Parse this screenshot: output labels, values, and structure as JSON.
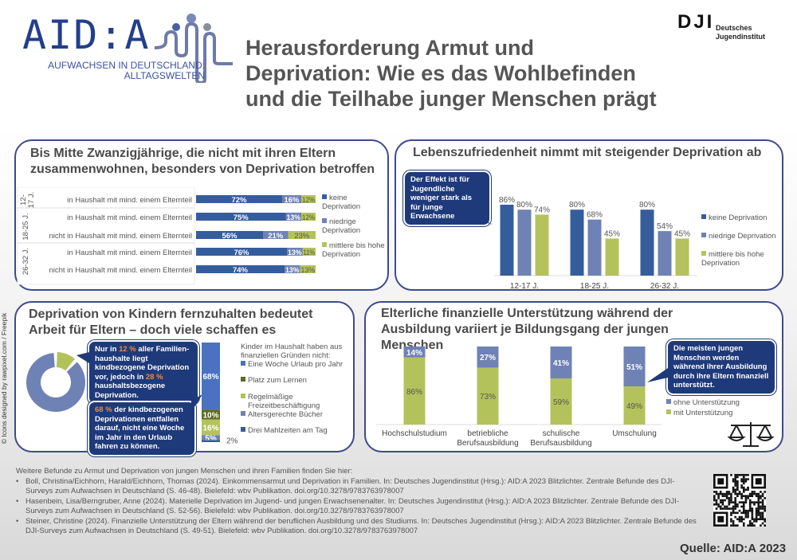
{
  "header": {
    "logo_text": "AID:A",
    "logo_subtitle_1": "AUFWACHSEN IN DEUTSCHLAND:",
    "logo_subtitle_2": "ALLTAGSWELTEN",
    "title_lines": [
      "Herausforderung Armut und",
      "Deprivation: Wie es das Wohlbefinden",
      "und die Teilhabe junger Menschen prägt"
    ],
    "dji_mark": "DJI",
    "dji_name_1": "Deutsches",
    "dji_name_2": "Jugendinstitut"
  },
  "colors": {
    "dark_blue": "#355d9c",
    "mid_blue": "#6f82b6",
    "green": "#b4c25b",
    "olive": "#5f6b25",
    "callout": "#1f3a7a",
    "border": "#3d4a8c"
  },
  "side_credit": "© Icons designed by rawpixel.com / Freepik",
  "panel1": {
    "title": "Bis Mitte Zwanzigjährige, die nicht mit ihren Eltern zusammenwohnen, besonders von Deprivation betroffen",
    "legend": [
      "keine Deprivation",
      "niedrige Deprivation",
      "mittlere bis hohe Deprivation"
    ]
  },
  "panel2": {
    "title": "Lebenszufriedenheit nimmt mit steigender Deprivation ab",
    "callout": "Der Effekt ist für Jugendliche weniger stark als für junge Erwachsene",
    "legend": [
      "keine Deprivation",
      "niedrige Deprivation",
      "mittlere bis hohe Deprivation"
    ]
  },
  "panel3": {
    "title_1": "Deprivation von Kindern fernzuhalten bedeutet",
    "title_2": "Arbeit für Eltern – doch viele schaffen es",
    "callout1": {
      "a": "Nur in ",
      "h1": "12 %",
      "b": " aller Familien­haushalte liegt kindbezoge­ne Deprivation vor, jedoch in ",
      "h2": "28 %",
      "c": " haushaltsbezogene Deprivation."
    },
    "callout2": {
      "h": "68 %",
      "a": " der kindbezogenen Deprivationen entfallen darauf, nicht eine Woche im Jahr in den Urlaub fahren zu können."
    },
    "legend_title": "Kinder im Haushalt haben aus finanziellen Gründen nicht:",
    "legend": [
      "Eine Woche Urlaub pro Jahr",
      "Platz zum Lernen",
      "Regelmäßige Freizeitbeschäftigung",
      "Altersgerechte Bücher",
      "Drei Mahlzeiten am Tag"
    ]
  },
  "panel4": {
    "title": "Elterliche finanzielle Unterstützung während der Ausbildung variiert je Bildungsgang der jungen Menschen",
    "callout": "Die meisten jungen Menschen werden während ihrer Ausbildung durch ihre Eltern finanziell unterstützt.",
    "legend": [
      "ohne Unterstützung",
      "mit Unterstützung"
    ]
  },
  "chart_data": [
    {
      "type": "bar",
      "orientation": "horizontal",
      "stacked": true,
      "groups": [
        "12-17 J.",
        "18-25 J.",
        "26-32 J."
      ],
      "rows": [
        {
          "group": "12-17 J.",
          "label": "in Haushalt mit mind. einem Elternteil",
          "values": [
            72,
            16,
            12
          ]
        },
        {
          "group": "18-25 J.",
          "label": "in Haushalt mit mind. einem Elternteil",
          "values": [
            75,
            13,
            12
          ]
        },
        {
          "group": "18-25 J.",
          "label": "nicht in Haushalt mit mind. einem Elternteil",
          "values": [
            56,
            21,
            23
          ]
        },
        {
          "group": "26-32 J.",
          "label": "in Haushalt mit mind. einem Elternteil",
          "values": [
            76,
            13,
            11
          ]
        },
        {
          "group": "26-32 J.",
          "label": "nicht in Haushalt mit mind. einem Elternteil",
          "values": [
            74,
            13,
            13
          ]
        }
      ],
      "series": [
        {
          "name": "keine Deprivation"
        },
        {
          "name": "niedrige Deprivation"
        },
        {
          "name": "mittlere bis hohe Deprivation"
        }
      ],
      "legend": "right"
    },
    {
      "type": "bar",
      "categories": [
        "12-17 J.",
        "18-25 J.",
        "26-32 J."
      ],
      "series": [
        {
          "name": "keine Deprivation",
          "values": [
            86,
            80,
            80
          ]
        },
        {
          "name": "niedrige Deprivation",
          "values": [
            80,
            68,
            54
          ]
        },
        {
          "name": "mittlere bis hohe Deprivation",
          "values": [
            74,
            45,
            45
          ]
        }
      ],
      "legend": "right"
    },
    {
      "type": "pie",
      "donut": true,
      "slices": [
        {
          "value": 12,
          "color": "#b4c25b"
        },
        {
          "value": 88,
          "color": "#6f82b6"
        }
      ]
    },
    {
      "type": "bar",
      "stacked": true,
      "categories": [
        ""
      ],
      "series": [
        {
          "name": "Eine Woche Urlaub pro Jahr",
          "values": [
            68
          ],
          "label": "68%"
        },
        {
          "name": "Platz zum Lernen",
          "values": [
            10
          ],
          "label": "10%"
        },
        {
          "name": "Regelmäßige Freizeitbeschäftigung",
          "values": [
            16
          ],
          "label": "16%"
        },
        {
          "name": "Altersgerechte Bücher",
          "values": [
            5
          ],
          "label": "5%"
        },
        {
          "name": "Drei Mahlzeiten am Tag",
          "values": [
            2
          ],
          "label": "2%"
        }
      ],
      "legend": "right"
    },
    {
      "type": "bar",
      "stacked": true,
      "categories": [
        "Hochschulstudium",
        "betriebliche Berufsausbildung",
        "schulische Berufsausbildung",
        "Umschulung"
      ],
      "series": [
        {
          "name": "mit Unterstützung",
          "values": [
            86,
            73,
            59,
            49
          ]
        },
        {
          "name": "ohne Unterstützung",
          "values": [
            14,
            27,
            41,
            51
          ]
        }
      ],
      "legend": "right"
    }
  ],
  "footer": {
    "intro": "Weitere Befunde zu Armut und Deprivation von jungen Menschen und ihren Familien finden Sie hier:",
    "refs": [
      "Boll, Christina/Eichhorn, Harald/Eichhorn, Thomas (2024). Einkommensarmut und Deprivation in Familien. In: Deutsches Jugendinstitut (Hrsg.): AID:A 2023 Blitzlichter. Zentrale Befunde des DJI-Surveys zum Aufwachsen in Deutschland (S. 46-48). Bielefeld: wbv Publikation. doi.org/10.3278/9783763978007",
      "Hasenbein, Lisa/Berngruber, Anne (2024). Materielle Deprivation im Jugend- und jungen Erwachsenenalter. In: Deutsches Jugendinstitut (Hrsg.): AID:A 2023 Blitzlichter. Zentrale Befunde des DJI-Surveys zum Aufwachsen in Deutschland (S. 52-56). Bielefeld: wbv Publikation. doi.org/10.3278/9783763978007",
      "Steiner, Christine (2024). Finanzielle Unterstützung der Eltern während der beruflichen Ausbildung und des Studiums. In: Deutsches Jugendinstitut (Hrsg.): AID:A 2023 Blitzlichter. Zentrale Befunde des DJI-Surveys zum Aufwachsen in Deutschland (S. 49-51). Bielefeld: wbv Publikation. doi.org/10.3278/9783763978007"
    ],
    "source": "Quelle: AID:A 2023"
  }
}
